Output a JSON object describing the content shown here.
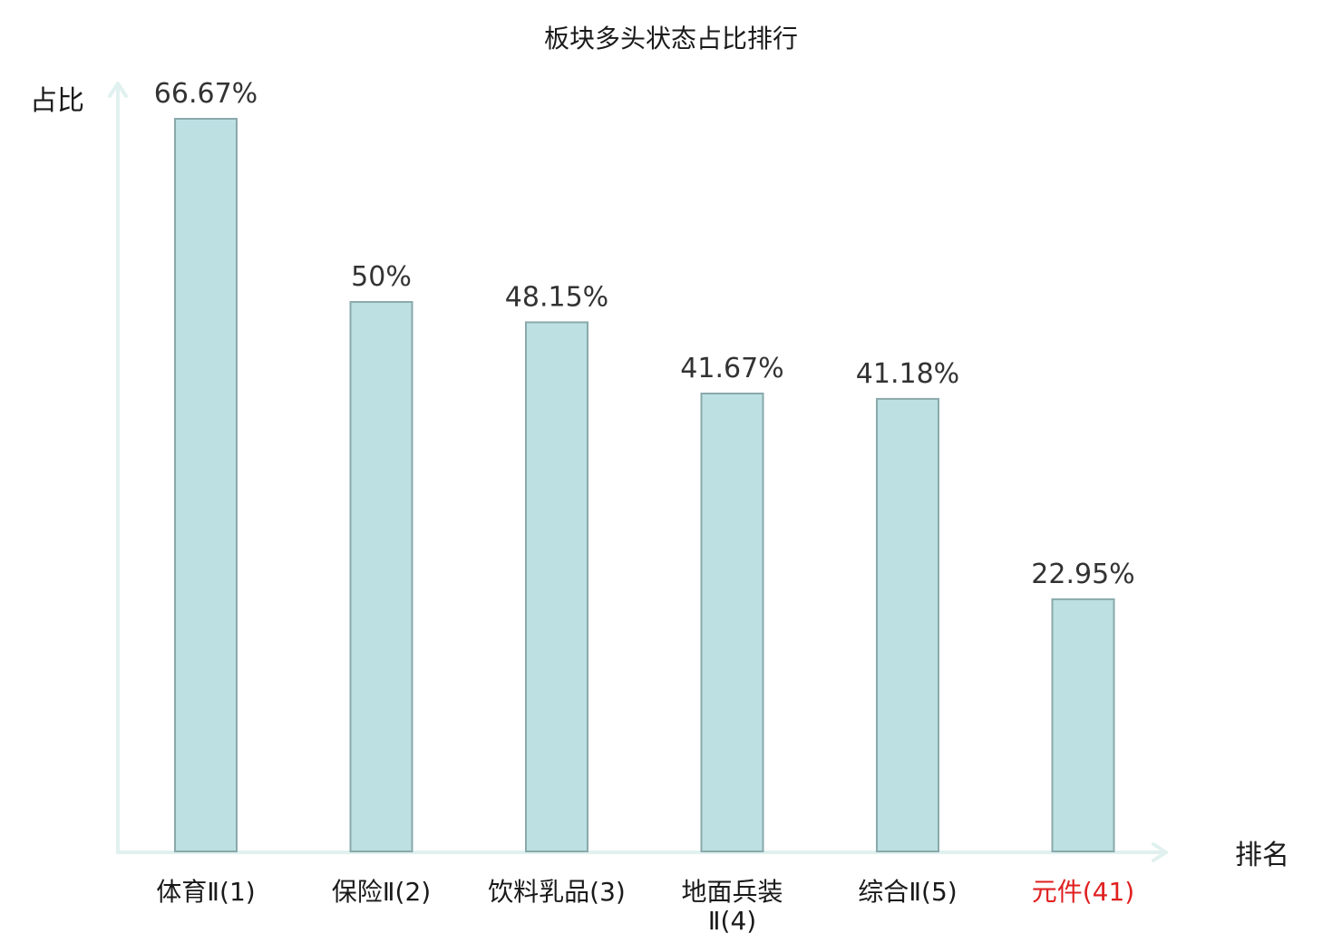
{
  "chart_data": {
    "type": "bar",
    "title": "板块多头状态占比排行",
    "ylabel": "占比",
    "xlabel": "排名",
    "ylim": [
      0,
      70
    ],
    "categories": [
      {
        "lines": [
          "体育Ⅱ(1)"
        ],
        "highlight": false
      },
      {
        "lines": [
          "保险Ⅱ(2)"
        ],
        "highlight": false
      },
      {
        "lines": [
          "饮料乳品(3)"
        ],
        "highlight": false
      },
      {
        "lines": [
          "地面兵装",
          "Ⅱ(4)"
        ],
        "highlight": false
      },
      {
        "lines": [
          "综合Ⅱ(5)"
        ],
        "highlight": false
      },
      {
        "lines": [
          "元件(41)"
        ],
        "highlight": true
      }
    ],
    "values": [
      66.67,
      50,
      48.15,
      41.67,
      41.18,
      22.95
    ],
    "value_labels": [
      "66.67%",
      "50%",
      "48.15%",
      "41.67%",
      "41.18%",
      "22.95%"
    ],
    "colors": {
      "bar_fill": "#bde0e3",
      "bar_stroke": "#8aa9ab",
      "axis": "#e0f1ef",
      "highlight_text": "#e02020",
      "value_text": "#333333"
    },
    "grid": false
  }
}
